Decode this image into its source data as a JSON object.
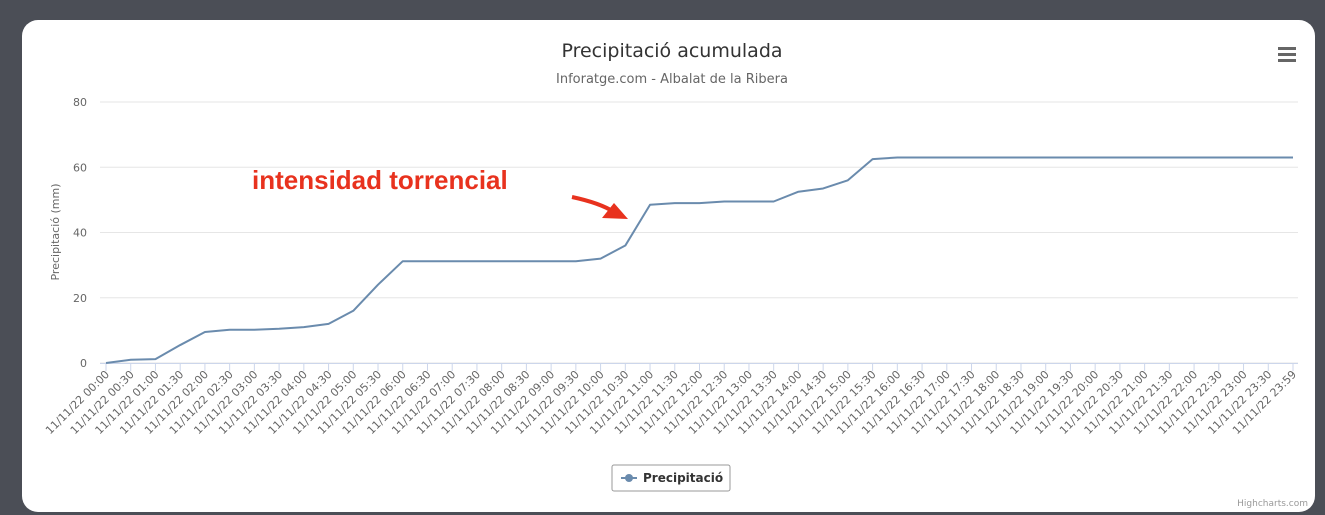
{
  "chart_data": {
    "type": "line",
    "title": "Precipitació acumulada",
    "subtitle": "Inforatge.com - Albalat de la Ribera",
    "y_axis_label": "Precipitació (mm)",
    "annotation": "intensidad torrencial",
    "credits": "Highcharts.com",
    "categories": [
      "11/11/22 00:00",
      "11/11/22 00:30",
      "11/11/22 01:00",
      "11/11/22 01:30",
      "11/11/22 02:00",
      "11/11/22 02:30",
      "11/11/22 03:00",
      "11/11/22 03:30",
      "11/11/22 04:00",
      "11/11/22 04:30",
      "11/11/22 05:00",
      "11/11/22 05:30",
      "11/11/22 06:00",
      "11/11/22 06:30",
      "11/11/22 07:00",
      "11/11/22 07:30",
      "11/11/22 08:00",
      "11/11/22 08:30",
      "11/11/22 09:00",
      "11/11/22 09:30",
      "11/11/22 10:00",
      "11/11/22 10:30",
      "11/11/22 11:00",
      "11/11/22 11:30",
      "11/11/22 12:00",
      "11/11/22 12:30",
      "11/11/22 13:00",
      "11/11/22 13:30",
      "11/11/22 14:00",
      "11/11/22 14:30",
      "11/11/22 15:00",
      "11/11/22 15:30",
      "11/11/22 16:00",
      "11/11/22 16:30",
      "11/11/22 17:00",
      "11/11/22 17:30",
      "11/11/22 18:00",
      "11/11/22 18:30",
      "11/11/22 19:00",
      "11/11/22 19:30",
      "11/11/22 20:00",
      "11/11/22 20:30",
      "11/11/22 21:00",
      "11/11/22 21:30",
      "11/11/22 22:00",
      "11/11/22 22:30",
      "11/11/22 23:00",
      "11/11/22 23:30",
      "11/11/22 23:59"
    ],
    "series": [
      {
        "name": "Precipitació",
        "color": "#6a8bad",
        "values": [
          0,
          1,
          1.2,
          5.5,
          9.5,
          10.2,
          10.2,
          10.5,
          11,
          12,
          16,
          24,
          31.2,
          31.2,
          31.2,
          31.2,
          31.2,
          31.2,
          31.2,
          31.2,
          32,
          36,
          48.5,
          49,
          49,
          49.5,
          49.5,
          49.5,
          52.5,
          53.5,
          56,
          62.5,
          63,
          63,
          63,
          63,
          63,
          63,
          63,
          63,
          63,
          63,
          63,
          63,
          63,
          63,
          63,
          63,
          63
        ]
      }
    ],
    "ylim": [
      0,
      80
    ],
    "yticks": [
      0,
      20,
      40,
      60,
      80
    ],
    "grid": true,
    "legend": "bottom"
  }
}
